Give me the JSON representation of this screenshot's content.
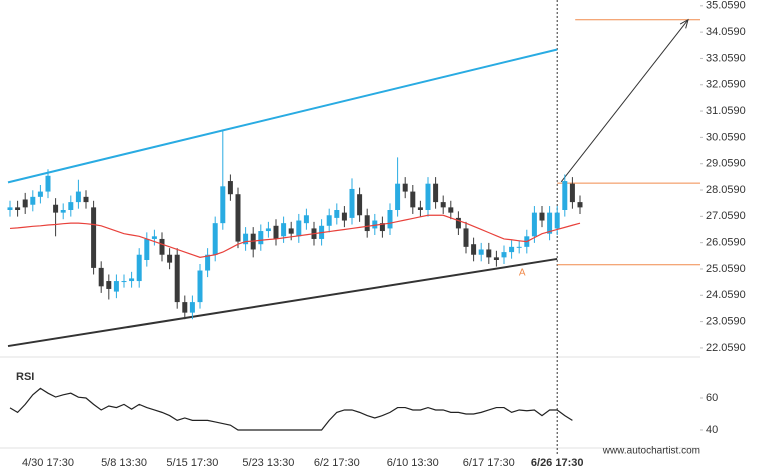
{
  "chart_data": {
    "type": "candlestick",
    "categories": [
      null,
      null,
      null,
      null,
      null,
      "4/30 17:30",
      null,
      null,
      null,
      null,
      null,
      null,
      null,
      null,
      null,
      "5/8 13:30",
      null,
      null,
      null,
      null,
      null,
      null,
      null,
      null,
      "5/15 17:30",
      null,
      null,
      null,
      null,
      null,
      null,
      null,
      null,
      null,
      "5/23 13:30",
      null,
      null,
      null,
      null,
      null,
      null,
      null,
      null,
      "6/2 17:30",
      null,
      null,
      null,
      null,
      null,
      null,
      null,
      null,
      null,
      "6/10 13:30",
      null,
      null,
      null,
      null,
      null,
      null,
      null,
      null,
      null,
      "6/17 17:30",
      null,
      null,
      null,
      null,
      null,
      null,
      null,
      null,
      "6/26 17:30",
      null,
      null,
      null
    ],
    "open": [
      27.3,
      27.4,
      27.7,
      27.5,
      27.8,
      28.0,
      27.5,
      27.2,
      27.3,
      27.6,
      27.8,
      27.4,
      25.1,
      24.6,
      24.2,
      24.6,
      24.6,
      24.6,
      25.4,
      26.2,
      26.2,
      25.6,
      25.6,
      23.8,
      23.4,
      23.8,
      25.0,
      25.6,
      26.8,
      28.4,
      27.9,
      26.0,
      26.4,
      26.0,
      26.5,
      26.7,
      26.3,
      26.6,
      26.3,
      26.8,
      26.6,
      26.2,
      26.7,
      27.0,
      27.2,
      27.0,
      27.9,
      27.1,
      26.6,
      26.8,
      26.6,
      27.3,
      28.3,
      28.0,
      27.4,
      27.3,
      28.3,
      27.6,
      27.4,
      27.0,
      26.6,
      26.0,
      25.6,
      25.8,
      25.5,
      25.5,
      25.7,
      25.9,
      25.9,
      26.3,
      27.2,
      26.4,
      26.6,
      27.3,
      28.3,
      27.6
    ],
    "high": [
      27.65,
      27.65,
      27.95,
      28.05,
      28.25,
      28.85,
      27.75,
      27.55,
      27.85,
      28.45,
      28.05,
      27.65,
      25.35,
      24.85,
      24.85,
      24.85,
      24.95,
      25.85,
      26.45,
      26.55,
      26.45,
      25.85,
      25.85,
      24.05,
      24.05,
      25.25,
      25.85,
      27.05,
      30.3,
      28.65,
      28.15,
      26.65,
      26.65,
      26.75,
      26.85,
      26.95,
      27.05,
      26.85,
      27.15,
      27.35,
      26.85,
      26.95,
      27.35,
      27.55,
      27.45,
      28.5,
      28.15,
      27.35,
      27.15,
      27.05,
      27.55,
      29.3,
      28.55,
      28.25,
      27.65,
      28.55,
      28.55,
      27.85,
      27.65,
      27.25,
      26.85,
      26.25,
      26.05,
      26.05,
      25.75,
      25.95,
      26.15,
      26.15,
      26.55,
      27.45,
      27.45,
      27.45,
      27.45,
      28.65,
      28.55,
      27.85
    ],
    "low": [
      27.05,
      27.05,
      27.15,
      27.25,
      27.55,
      27.75,
      26.3,
      26.95,
      27.05,
      27.35,
      27.35,
      24.85,
      24.15,
      23.9,
      23.95,
      24.35,
      24.35,
      24.35,
      25.15,
      25.95,
      25.35,
      25.05,
      23.55,
      23.15,
      23.15,
      23.55,
      24.75,
      25.35,
      26.55,
      27.65,
      25.85,
      25.75,
      25.5,
      25.75,
      26.25,
      25.95,
      26.05,
      26.15,
      26.05,
      26.55,
      25.95,
      25.95,
      26.45,
      26.75,
      26.65,
      26.75,
      26.85,
      26.25,
      26.35,
      26.25,
      26.35,
      27.05,
      27.75,
      27.15,
      27.05,
      27.05,
      27.35,
      27.15,
      26.95,
      26.35,
      25.65,
      25.35,
      25.35,
      25.25,
      25.15,
      25.25,
      25.45,
      25.65,
      25.65,
      26.05,
      26.65,
      26.15,
      26.35,
      27.05,
      27.35,
      27.15
    ],
    "close": [
      27.4,
      27.3,
      27.4,
      27.8,
      28.0,
      28.6,
      27.2,
      27.3,
      27.6,
      28.0,
      27.6,
      25.1,
      24.4,
      24.3,
      24.6,
      24.6,
      24.7,
      25.6,
      26.2,
      26.3,
      25.6,
      25.3,
      23.8,
      23.4,
      23.8,
      25.0,
      25.6,
      26.8,
      28.2,
      27.9,
      26.1,
      26.4,
      25.8,
      26.5,
      26.6,
      26.2,
      26.8,
      26.4,
      26.9,
      27.1,
      26.2,
      26.7,
      27.1,
      27.3,
      26.9,
      28.1,
      27.1,
      26.5,
      26.9,
      26.5,
      27.3,
      28.3,
      28.0,
      27.4,
      27.3,
      28.3,
      27.6,
      27.4,
      27.2,
      26.6,
      25.9,
      25.6,
      25.8,
      25.5,
      25.4,
      25.7,
      25.9,
      25.9,
      26.3,
      27.2,
      26.9,
      27.2,
      27.2,
      28.4,
      27.6,
      27.4
    ],
    "up_color": "#29abe2",
    "down_color": "#3a3a3a",
    "moving_average": {
      "color": "#e8413b",
      "values": [
        26.6,
        26.62,
        26.65,
        26.68,
        26.7,
        26.73,
        26.75,
        26.78,
        26.8,
        26.8,
        26.78,
        26.75,
        26.7,
        26.6,
        26.5,
        26.4,
        26.35,
        26.3,
        26.2,
        26.1,
        26.0,
        25.9,
        25.8,
        25.7,
        25.6,
        25.5,
        25.55,
        25.6,
        25.7,
        25.85,
        26.0,
        26.1,
        26.12,
        26.15,
        26.18,
        26.2,
        26.24,
        26.28,
        26.32,
        26.36,
        26.4,
        26.44,
        26.48,
        26.52,
        26.56,
        26.6,
        26.64,
        26.68,
        26.72,
        26.76,
        26.8,
        26.86,
        26.92,
        26.98,
        27.04,
        27.1,
        27.1,
        27.1,
        27.0,
        26.9,
        26.8,
        26.68,
        26.56,
        26.44,
        26.32,
        26.2,
        26.17,
        26.13,
        26.1,
        26.25,
        26.4,
        26.48,
        26.56,
        26.64,
        26.72,
        26.8
      ]
    },
    "trendlines": [
      {
        "color": "#29abe2",
        "values": [
          28.35,
          33.4
        ]
      },
      {
        "color": "#333333",
        "values": [
          22.13,
          25.44
        ]
      }
    ],
    "levels": {
      "color": "#f08a4b",
      "values": [
        28.32,
        25.22,
        34.53
      ]
    },
    "forecast": {
      "color": "#333333",
      "values": [
        28.37,
        34.53
      ]
    },
    "pattern_label": "A",
    "ylim": [
      21.98,
      35.28
    ],
    "yticks": [
      {
        "value": 22.059,
        "label": "22.0590"
      },
      {
        "value": 23.059,
        "label": "23.0590"
      },
      {
        "value": 24.059,
        "label": "24.0590"
      },
      {
        "value": 25.059,
        "label": "25.0590"
      },
      {
        "value": 26.059,
        "label": "26.0590"
      },
      {
        "value": 27.059,
        "label": "27.0590"
      },
      {
        "value": 28.059,
        "label": "28.0590"
      },
      {
        "value": 29.059,
        "label": "29.0590"
      },
      {
        "value": 30.059,
        "label": "30.0590"
      },
      {
        "value": 31.059,
        "label": "31.0590"
      },
      {
        "value": 32.059,
        "label": "32.0590"
      },
      {
        "value": 33.059,
        "label": "33.0590"
      },
      {
        "value": 34.059,
        "label": "34.0590"
      },
      {
        "value": 35.059,
        "label": "35.0590"
      }
    ],
    "rsi": {
      "title": "RSI",
      "color": "#222222",
      "ylim": [
        30.6,
        83.75
      ],
      "yticks": [
        40,
        60
      ],
      "values": [
        53.8,
        51,
        56,
        62,
        66,
        63,
        60.6,
        62,
        63,
        60.5,
        60,
        56,
        52.5,
        55,
        54,
        56,
        53,
        56,
        54,
        52.5,
        51,
        49,
        46,
        47.5,
        46,
        46,
        46,
        45,
        44,
        43,
        40,
        40,
        40,
        40,
        40,
        40,
        40,
        40,
        40,
        40,
        40,
        40,
        46,
        51,
        52.5,
        52.5,
        51,
        49,
        47.5,
        49,
        51,
        54,
        54,
        52.5,
        52.5,
        54,
        52.5,
        52.5,
        51,
        51,
        50,
        50,
        51,
        52.5,
        54,
        54,
        51,
        52.5,
        52,
        52.5,
        49,
        52.5,
        52.5,
        49,
        46,
        null
      ]
    },
    "source": "www.autochartist.com"
  }
}
